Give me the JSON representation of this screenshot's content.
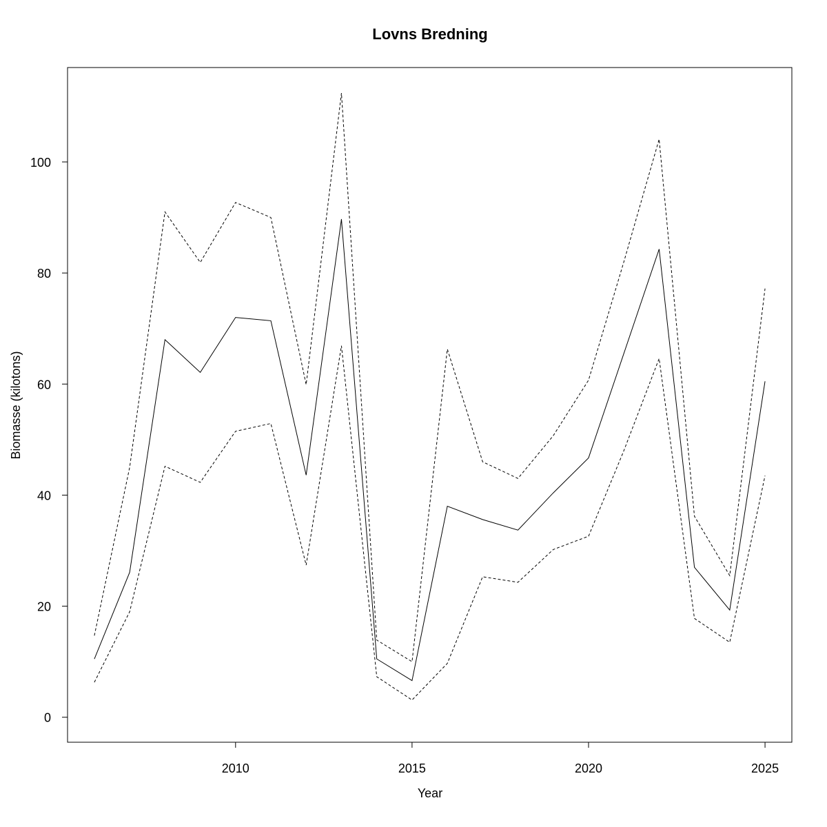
{
  "chart_data": {
    "type": "line",
    "title": "Lovns Bredning",
    "x_label": "Year",
    "y_label": "Biomasse (kilotons)",
    "x": [
      2006,
      2007,
      2008,
      2009,
      2010,
      2011,
      2012,
      2013,
      2014,
      2015,
      2016,
      2017,
      2018,
      2019,
      2020,
      2021,
      2022,
      2023,
      2024,
      2025
    ],
    "series": [
      {
        "color": "#000000",
        "dashed": false,
        "values": [
          10.5,
          26.1,
          68.0,
          62.1,
          72.0,
          71.4,
          43.6,
          89.7,
          10.5,
          6.6,
          38.0,
          35.6,
          33.7,
          40.4,
          46.7,
          65.5,
          84.3,
          27.0,
          19.3,
          60.5
        ]
      },
      {
        "color": "#000000",
        "dashed": true,
        "values": [
          14.7,
          45.0,
          91.0,
          81.9,
          92.7,
          90.0,
          59.9,
          112.4,
          13.9,
          10.0,
          66.3,
          46.0,
          43.0,
          50.7,
          60.7,
          82.0,
          104.1,
          36.2,
          25.5,
          77.2
        ]
      },
      {
        "color": "#000000",
        "dashed": true,
        "values": [
          6.3,
          19.0,
          45.2,
          42.3,
          51.5,
          52.9,
          27.4,
          66.9,
          7.3,
          3.1,
          9.7,
          25.3,
          24.3,
          30.2,
          32.6,
          48.0,
          64.6,
          17.8,
          13.5,
          43.5
        ]
      }
    ],
    "xlim": [
      2005.24,
      2025.76
    ],
    "xticks": [
      2010,
      2015,
      2020,
      2025
    ],
    "ylim": [
      -4.5,
      117
    ],
    "yticks": [
      0,
      20,
      40,
      60,
      80,
      100
    ]
  }
}
